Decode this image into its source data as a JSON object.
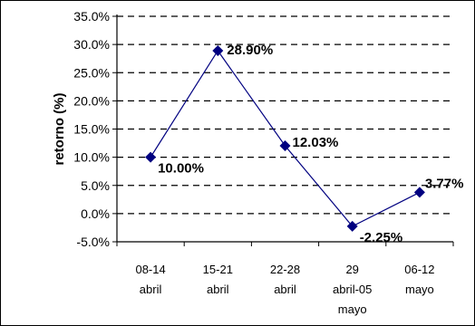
{
  "chart_data": {
    "type": "line",
    "title": "",
    "xlabel": "",
    "ylabel": "retorno (%)",
    "ylim": [
      -5.0,
      35.0
    ],
    "ytick_step": 5.0,
    "yticks": [
      "-5.0%",
      "0.0%",
      "5.0%",
      "10.0%",
      "15.0%",
      "20.0%",
      "25.0%",
      "30.0%",
      "35.0%"
    ],
    "grid": true,
    "categories": [
      [
        "08-14",
        "abril"
      ],
      [
        "15-21",
        "abril"
      ],
      [
        "22-28",
        "abril"
      ],
      [
        "29",
        "abril-05",
        "mayo"
      ],
      [
        "06-12",
        "mayo"
      ]
    ],
    "series": [
      {
        "values": [
          10.0,
          28.9,
          12.03,
          -2.25,
          3.77
        ]
      }
    ],
    "data_labels": [
      "10.00%",
      "28.90%",
      "12.03%",
      "-2.25%",
      "3.77%"
    ],
    "colors": {
      "line": "#000080",
      "marker": "#000080",
      "grid": "#000000"
    }
  }
}
